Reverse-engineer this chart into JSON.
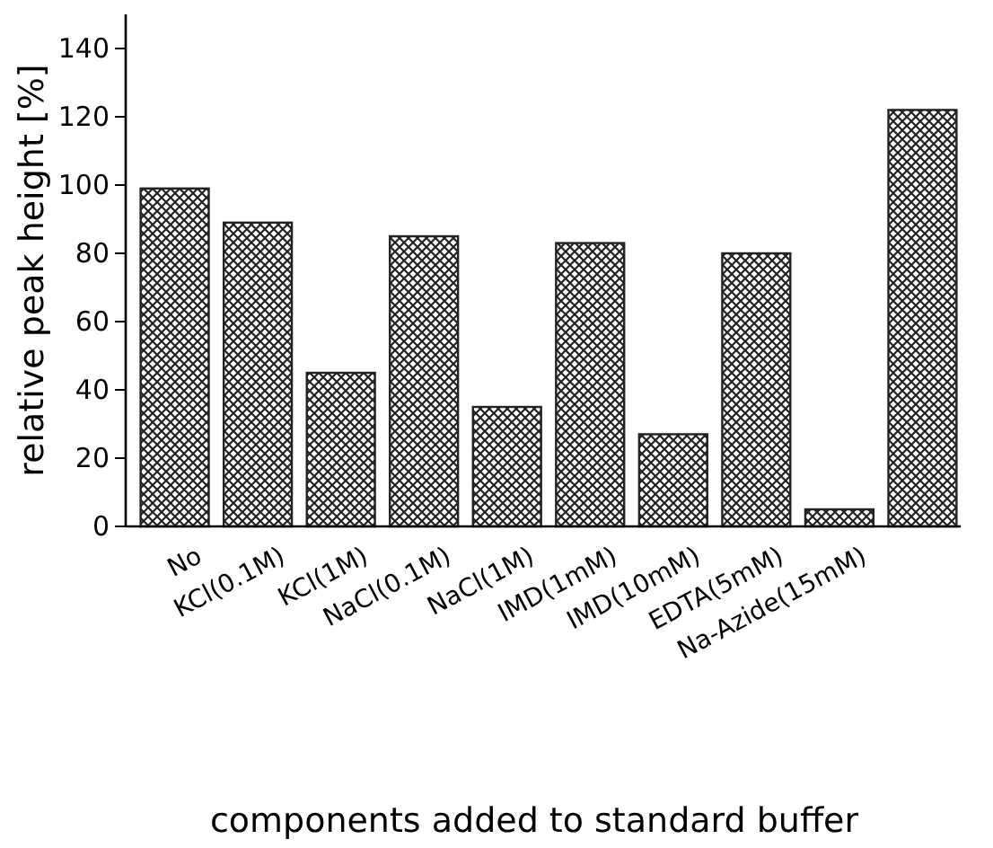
{
  "chart_data": {
    "type": "bar",
    "xlabel": "components added to standard buffer",
    "ylabel": "relative peak height [%]",
    "categories": [
      "No",
      "KCl(0.1M)",
      "KCl(1M)",
      "NaCl(0.1M)",
      "NaCl(1M)",
      "IMD(1mM)",
      "IMD(10mM)",
      "EDTA(5mM)",
      "Na-Azide(15mM)",
      null
    ],
    "values": [
      99,
      89,
      45,
      85,
      35,
      83,
      27,
      80,
      5,
      122
    ],
    "color": "#222222",
    "ylim": [
      0,
      150
    ],
    "yticks": [
      0,
      20,
      40,
      60,
      80,
      100,
      120,
      140
    ],
    "grid": false
  }
}
